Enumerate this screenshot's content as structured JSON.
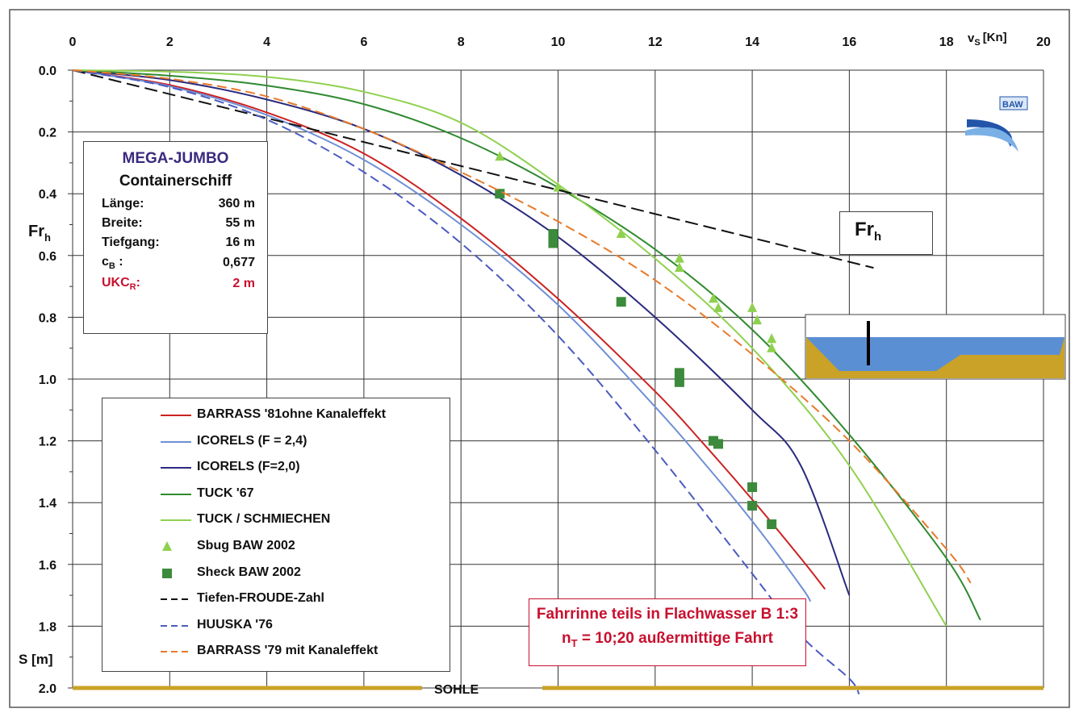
{
  "chart_data": {
    "type": "line",
    "top_axis": {
      "label_main": "v",
      "label_sub": "S",
      "label_unit": "[Kn]",
      "range": [
        0,
        20
      ],
      "ticks": [
        "0",
        "2",
        "4",
        "6",
        "8",
        "10",
        "12",
        "14",
        "16",
        "18",
        "20"
      ]
    },
    "left_axis": {
      "label_fr_main": "Fr",
      "label_fr_sub": "h",
      "label_squat": "S [m]",
      "range": [
        0.0,
        2.0
      ],
      "reversed": true,
      "ticks": [
        "0.0",
        "0.2",
        "0.4",
        "0.6",
        "0.8",
        "1.0",
        "1.2",
        "1.4",
        "1.6",
        "1.8",
        "2.0"
      ]
    },
    "grid": true,
    "bed_label": "SOHLE",
    "series": [
      {
        "name": "BARRASS '81ohne Kanaleffekt",
        "kind": "line",
        "color": "#cc2222",
        "dash": "",
        "x": [
          0,
          2,
          4,
          6,
          8,
          10,
          12,
          13,
          14,
          15,
          15.5
        ],
        "y": [
          0,
          0.048,
          0.137,
          0.27,
          0.48,
          0.74,
          1.04,
          1.21,
          1.39,
          1.58,
          1.68
        ]
      },
      {
        "name": "ICORELS (F = 2,4)",
        "kind": "line",
        "color": "#6f8fd6",
        "dash": "",
        "x": [
          0,
          2,
          4,
          6,
          8,
          10,
          12,
          13,
          14,
          15,
          15.2
        ],
        "y": [
          0,
          0.052,
          0.145,
          0.29,
          0.5,
          0.76,
          1.09,
          1.27,
          1.46,
          1.67,
          1.72
        ]
      },
      {
        "name": "ICORELS (F=2,0)",
        "kind": "line",
        "color": "#2a2a7e",
        "dash": "",
        "x": [
          0,
          2,
          4,
          6,
          8,
          10,
          12,
          14,
          15,
          16
        ],
        "y": [
          0,
          0.032,
          0.095,
          0.19,
          0.34,
          0.54,
          0.8,
          1.1,
          1.28,
          1.7
        ]
      },
      {
        "name": "TUCK '67",
        "kind": "line",
        "color": "#2f8a2f",
        "dash": "",
        "x": [
          0,
          2,
          4,
          6,
          8,
          10,
          12,
          14,
          16,
          18,
          18.7
        ],
        "y": [
          0,
          0.018,
          0.05,
          0.11,
          0.22,
          0.38,
          0.58,
          0.84,
          1.18,
          1.58,
          1.78
        ]
      },
      {
        "name": "TUCK / SCHMIECHEN",
        "kind": "line",
        "color": "#8fd14f",
        "dash": "",
        "x": [
          0,
          2,
          4,
          6,
          8,
          10,
          12,
          14,
          16,
          18
        ],
        "y": [
          0,
          0.005,
          0.022,
          0.07,
          0.17,
          0.37,
          0.61,
          0.9,
          1.28,
          1.8
        ]
      },
      {
        "name": "Sbug BAW 2002",
        "kind": "triangle",
        "color": "#8fd14f",
        "x": [
          8.8,
          10,
          11.3,
          12.5,
          12.5,
          13.2,
          13.3,
          14,
          14.1,
          14.4,
          14.4
        ],
        "y": [
          0.28,
          0.38,
          0.53,
          0.61,
          0.64,
          0.74,
          0.77,
          0.77,
          0.81,
          0.87,
          0.9
        ]
      },
      {
        "name": "Sheck BAW 2002",
        "kind": "square",
        "color": "#3c8a3c",
        "x": [
          8.8,
          9.9,
          9.9,
          11.3,
          12.5,
          12.5,
          13.2,
          13.3,
          14,
          14,
          14.4
        ],
        "y": [
          0.4,
          0.53,
          0.56,
          0.75,
          0.98,
          1.01,
          1.2,
          1.21,
          1.35,
          1.41,
          1.47
        ]
      },
      {
        "name": "Tiefen-FROUDE-Zahl",
        "kind": "line",
        "color": "#111111",
        "dash": "16 7",
        "x": [
          0,
          16.5
        ],
        "y": [
          0,
          0.64
        ]
      },
      {
        "name": "HUUSKA '76",
        "kind": "line",
        "color": "#4b5bbf",
        "dash": "12 6",
        "x": [
          0,
          2,
          4,
          6,
          8,
          10,
          12,
          14,
          15,
          16,
          16.2
        ],
        "y": [
          0,
          0.055,
          0.16,
          0.33,
          0.56,
          0.86,
          1.23,
          1.63,
          1.83,
          1.97,
          2.02
        ]
      },
      {
        "name": "BARRASS '79 mit Kanaleffekt",
        "kind": "line",
        "color": "#e87a2a",
        "dash": "12 6",
        "x": [
          0,
          2,
          4,
          6,
          8,
          10,
          12,
          14,
          16,
          18,
          18.5
        ],
        "y": [
          0,
          0.028,
          0.085,
          0.19,
          0.33,
          0.49,
          0.68,
          0.92,
          1.2,
          1.55,
          1.66
        ]
      }
    ]
  },
  "ship_box": {
    "title": "MEGA-JUMBO",
    "subtitle": "Containerschiff",
    "rows": [
      {
        "key": "Länge:",
        "value": "360 m"
      },
      {
        "key": "Breite:",
        "value": "55 m"
      },
      {
        "key": "Tiefgang:",
        "value": "16 m"
      },
      {
        "key_main": "c",
        "key_sub": "B",
        "key_tail": " :",
        "value": "0,677"
      },
      {
        "key_main": "UKC",
        "key_sub": "R",
        "key_tail": ":",
        "value": "2 m"
      }
    ]
  },
  "note": {
    "line1": "Fahrrinne teils in Flachwasser B 1:3",
    "line2_main": "n",
    "line2_sub": "T",
    "line2_rest": " = 10;20 außermittige Fahrt"
  },
  "fr_label": {
    "main": "Fr",
    "sub": "h"
  },
  "logo": {
    "text": "BAW",
    "color": "#2255aa"
  },
  "colors": {
    "water": "#5b8fd4",
    "bed": "#c9a227",
    "sand_label": "#8b3a2a"
  }
}
